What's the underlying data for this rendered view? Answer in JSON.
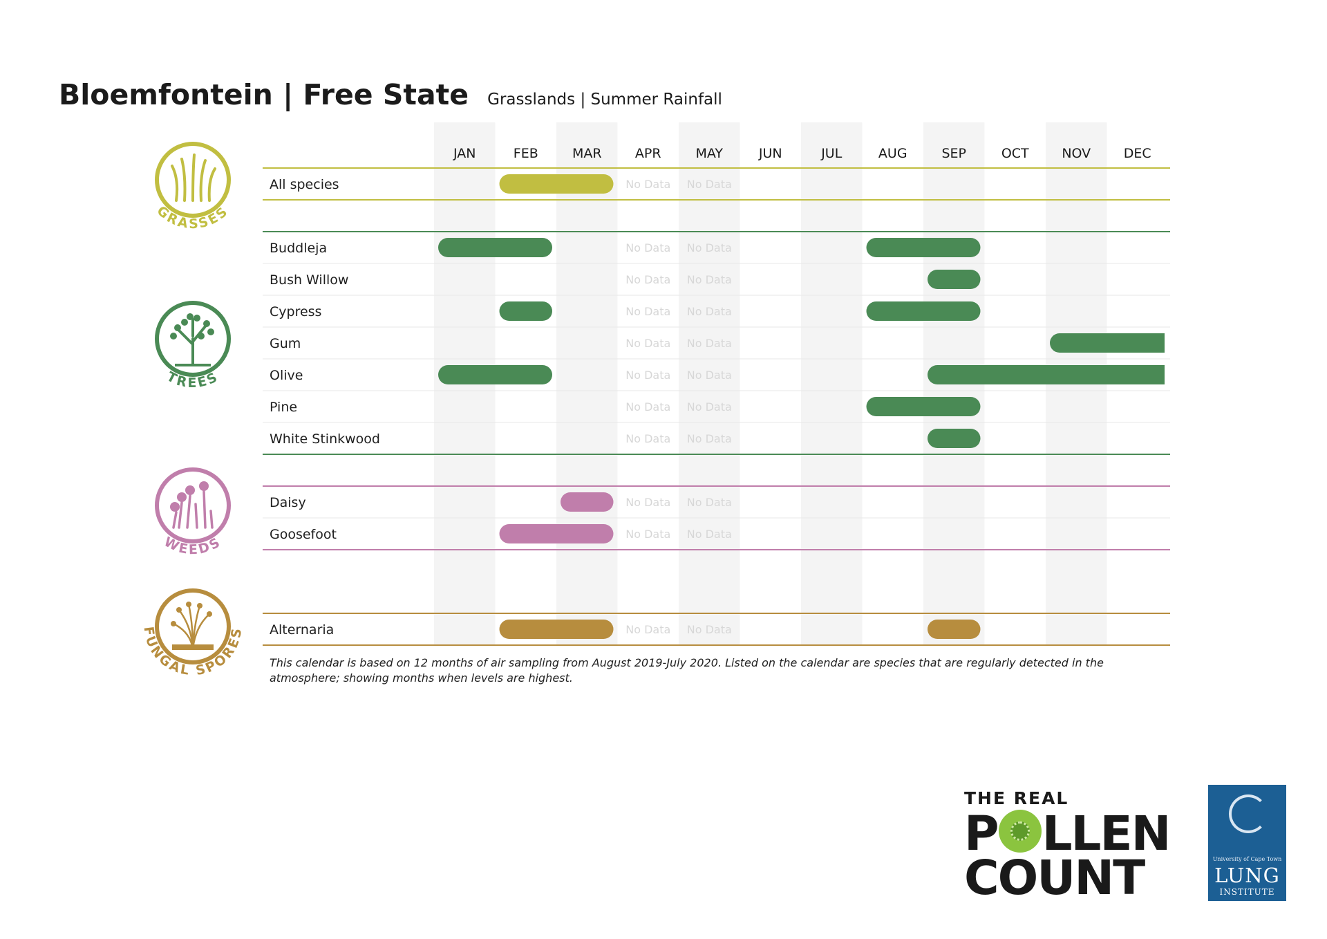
{
  "header": {
    "title": "Bloemfontein | Free State",
    "subtitle": "Grasslands | Summer Rainfall"
  },
  "footnote": "This calendar is based on 12 months of air sampling from August 2019-July 2020. Listed on the calendar are species that are regularly detected in the atmosphere; showing months when levels are highest.",
  "chart_data": {
    "type": "table",
    "months": [
      "JAN",
      "FEB",
      "MAR",
      "APR",
      "MAY",
      "JUN",
      "JUL",
      "AUG",
      "SEP",
      "OCT",
      "NOV",
      "DEC"
    ],
    "no_data_label": "No Data",
    "no_data_months": [
      "APR",
      "MAY"
    ],
    "groups": [
      {
        "name": "GRASSES",
        "color": "#c1be41",
        "species": [
          {
            "name": "All species",
            "high_months": [
              [
                "FEB",
                "MAR"
              ]
            ]
          }
        ]
      },
      {
        "name": "TREES",
        "color": "#4a8a55",
        "species": [
          {
            "name": "Buddleja",
            "high_months": [
              [
                "JAN",
                "FEB"
              ],
              [
                "AUG",
                "SEP"
              ]
            ]
          },
          {
            "name": "Bush Willow",
            "high_months": [
              [
                "SEP",
                "SEP"
              ]
            ]
          },
          {
            "name": "Cypress",
            "high_months": [
              [
                "FEB",
                "FEB"
              ],
              [
                "AUG",
                "SEP"
              ]
            ]
          },
          {
            "name": "Gum",
            "high_months": [
              [
                "NOV",
                "DEC"
              ]
            ]
          },
          {
            "name": "Olive",
            "high_months": [
              [
                "JAN",
                "FEB"
              ],
              [
                "SEP",
                "DEC"
              ]
            ]
          },
          {
            "name": "Pine",
            "high_months": [
              [
                "AUG",
                "SEP"
              ]
            ]
          },
          {
            "name": "White Stinkwood",
            "high_months": [
              [
                "SEP",
                "SEP"
              ]
            ]
          }
        ]
      },
      {
        "name": "WEEDS",
        "color": "#c07eab",
        "species": [
          {
            "name": "Daisy",
            "high_months": [
              [
                "MAR",
                "MAR"
              ]
            ]
          },
          {
            "name": "Goosefoot",
            "high_months": [
              [
                "FEB",
                "MAR"
              ]
            ]
          }
        ]
      },
      {
        "name": "FUNGAL SPORES",
        "color": "#b78d3e",
        "species": [
          {
            "name": "Alternaria",
            "high_months": [
              [
                "FEB",
                "MAR"
              ],
              [
                "SEP",
                "SEP"
              ]
            ]
          }
        ]
      }
    ]
  },
  "logos": {
    "pollen_line1": "THE REAL",
    "pollen_line2_a": "P",
    "pollen_line2_b": "LLEN",
    "pollen_line3": "COUNT",
    "lung_uct": "University of Cape Town",
    "lung_big": "LUNG",
    "lung_inst": "INSTITUTE"
  },
  "colors": {
    "stripe": "#f4f4f4",
    "row_divider": "#e7e7e7",
    "no_data_text": "#d7d7d7"
  }
}
